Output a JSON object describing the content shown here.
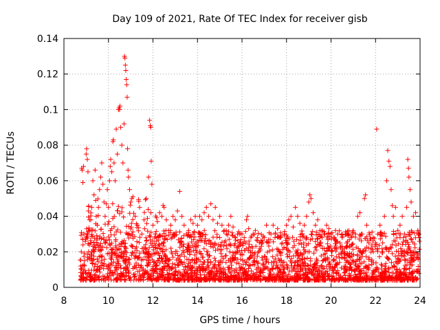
{
  "chart_data": {
    "type": "scatter",
    "title": "Day 109 of 2021, Rate Of TEC Index for receiver gisb",
    "xlabel": "GPS time / hours",
    "ylabel": "ROTI / TECUs",
    "xlim": [
      8,
      24
    ],
    "ylim": [
      0,
      0.14
    ],
    "x_ticks": [
      8,
      10,
      12,
      14,
      16,
      18,
      20,
      22,
      24
    ],
    "y_ticks": [
      0,
      0.02,
      0.04,
      0.06,
      0.08,
      0.1,
      0.12,
      0.14
    ],
    "x_tick_labels": [
      "8",
      "10",
      "12",
      "14",
      "16",
      "18",
      "20",
      "22",
      "24"
    ],
    "y_tick_labels": [
      "0",
      "0.02",
      "0.04",
      "0.06",
      "0.08",
      "0.1",
      "0.12",
      "0.14"
    ],
    "grid": true,
    "marker": "+",
    "color": "#ff0000",
    "series": [
      {
        "name": "gisb",
        "points": [
          [
            8.75,
            0.012
          ],
          [
            8.78,
            0.02
          ],
          [
            8.8,
            0.067
          ],
          [
            8.82,
            0.066
          ],
          [
            8.85,
            0.059
          ],
          [
            8.88,
            0.068
          ],
          [
            8.9,
            0.03
          ],
          [
            8.92,
            0.015
          ],
          [
            9.0,
            0.075
          ],
          [
            9.02,
            0.078
          ],
          [
            9.05,
            0.072
          ],
          [
            9.08,
            0.065
          ],
          [
            9.1,
            0.043
          ],
          [
            9.15,
            0.038
          ],
          [
            9.2,
            0.025
          ],
          [
            9.25,
            0.045
          ],
          [
            9.3,
            0.06
          ],
          [
            9.35,
            0.052
          ],
          [
            9.4,
            0.066
          ],
          [
            9.45,
            0.04
          ],
          [
            9.5,
            0.035
          ],
          [
            9.55,
            0.045
          ],
          [
            9.6,
            0.055
          ],
          [
            9.65,
            0.062
          ],
          [
            9.7,
            0.07
          ],
          [
            9.75,
            0.058
          ],
          [
            9.8,
            0.048
          ],
          [
            9.85,
            0.04
          ],
          [
            9.9,
            0.047
          ],
          [
            9.95,
            0.055
          ],
          [
            10.0,
            0.045
          ],
          [
            10.02,
            0.037
          ],
          [
            10.05,
            0.06
          ],
          [
            10.08,
            0.068
          ],
          [
            10.1,
            0.072
          ],
          [
            10.15,
            0.065
          ],
          [
            10.2,
            0.082
          ],
          [
            10.22,
            0.083
          ],
          [
            10.25,
            0.07
          ],
          [
            10.3,
            0.06
          ],
          [
            10.35,
            0.089
          ],
          [
            10.4,
            0.075
          ],
          [
            10.45,
            0.1
          ],
          [
            10.48,
            0.101
          ],
          [
            10.5,
            0.1
          ],
          [
            10.52,
            0.102
          ],
          [
            10.55,
            0.09
          ],
          [
            10.6,
            0.08
          ],
          [
            10.65,
            0.07
          ],
          [
            10.7,
            0.092
          ],
          [
            10.72,
            0.13
          ],
          [
            10.74,
            0.129
          ],
          [
            10.76,
            0.125
          ],
          [
            10.78,
            0.122
          ],
          [
            10.8,
            0.117
          ],
          [
            10.82,
            0.114
          ],
          [
            10.84,
            0.107
          ],
          [
            10.86,
            0.078
          ],
          [
            10.88,
            0.066
          ],
          [
            10.9,
            0.062
          ],
          [
            10.95,
            0.055
          ],
          [
            11.0,
            0.048
          ],
          [
            11.05,
            0.05
          ],
          [
            11.1,
            0.051
          ],
          [
            11.2,
            0.04
          ],
          [
            11.3,
            0.035
          ],
          [
            11.4,
            0.045
          ],
          [
            11.5,
            0.03
          ],
          [
            11.6,
            0.038
          ],
          [
            11.7,
            0.05
          ],
          [
            11.8,
            0.062
          ],
          [
            11.85,
            0.094
          ],
          [
            11.88,
            0.091
          ],
          [
            11.9,
            0.09
          ],
          [
            11.92,
            0.071
          ],
          [
            11.95,
            0.058
          ],
          [
            12.0,
            0.035
          ],
          [
            12.1,
            0.03
          ],
          [
            12.2,
            0.037
          ],
          [
            12.3,
            0.042
          ],
          [
            12.4,
            0.04
          ],
          [
            12.5,
            0.045
          ],
          [
            12.6,
            0.038
          ],
          [
            12.7,
            0.032
          ],
          [
            12.8,
            0.035
          ],
          [
            12.9,
            0.04
          ],
          [
            13.0,
            0.038
          ],
          [
            13.1,
            0.043
          ],
          [
            13.2,
            0.054
          ],
          [
            13.3,
            0.04
          ],
          [
            13.4,
            0.035
          ],
          [
            13.5,
            0.03
          ],
          [
            13.6,
            0.032
          ],
          [
            13.7,
            0.038
          ],
          [
            13.8,
            0.036
          ],
          [
            13.9,
            0.04
          ],
          [
            14.0,
            0.035
          ],
          [
            14.1,
            0.04
          ],
          [
            14.2,
            0.038
          ],
          [
            14.3,
            0.042
          ],
          [
            14.4,
            0.045
          ],
          [
            14.5,
            0.04
          ],
          [
            14.6,
            0.047
          ],
          [
            14.7,
            0.038
          ],
          [
            14.8,
            0.045
          ],
          [
            14.9,
            0.036
          ],
          [
            15.0,
            0.04
          ],
          [
            15.1,
            0.035
          ],
          [
            15.2,
            0.032
          ],
          [
            15.3,
            0.03
          ],
          [
            15.4,
            0.035
          ],
          [
            15.5,
            0.04
          ],
          [
            15.6,
            0.034
          ],
          [
            15.7,
            0.028
          ],
          [
            15.8,
            0.03
          ],
          [
            15.9,
            0.025
          ],
          [
            16.0,
            0.03
          ],
          [
            16.1,
            0.028
          ],
          [
            16.2,
            0.038
          ],
          [
            16.25,
            0.04
          ],
          [
            16.3,
            0.033
          ],
          [
            16.4,
            0.028
          ],
          [
            16.5,
            0.03
          ],
          [
            16.6,
            0.032
          ],
          [
            16.7,
            0.028
          ],
          [
            16.8,
            0.022
          ],
          [
            16.9,
            0.025
          ],
          [
            17.0,
            0.028
          ],
          [
            17.1,
            0.035
          ],
          [
            17.2,
            0.025
          ],
          [
            17.3,
            0.03
          ],
          [
            17.4,
            0.035
          ],
          [
            17.5,
            0.03
          ],
          [
            17.6,
            0.033
          ],
          [
            17.7,
            0.028
          ],
          [
            17.8,
            0.025
          ],
          [
            17.9,
            0.03
          ],
          [
            18.0,
            0.035
          ],
          [
            18.1,
            0.038
          ],
          [
            18.2,
            0.04
          ],
          [
            18.3,
            0.034
          ],
          [
            18.4,
            0.045
          ],
          [
            18.5,
            0.04
          ],
          [
            18.6,
            0.036
          ],
          [
            18.7,
            0.03
          ],
          [
            18.8,
            0.035
          ],
          [
            18.9,
            0.04
          ],
          [
            19.0,
            0.048
          ],
          [
            19.05,
            0.052
          ],
          [
            19.1,
            0.05
          ],
          [
            19.2,
            0.042
          ],
          [
            19.3,
            0.035
          ],
          [
            19.4,
            0.038
          ],
          [
            19.5,
            0.032
          ],
          [
            19.6,
            0.028
          ],
          [
            19.7,
            0.03
          ],
          [
            19.8,
            0.035
          ],
          [
            19.9,
            0.033
          ],
          [
            20.0,
            0.03
          ],
          [
            20.1,
            0.028
          ],
          [
            20.2,
            0.032
          ],
          [
            20.3,
            0.03
          ],
          [
            20.4,
            0.025
          ],
          [
            20.5,
            0.028
          ],
          [
            20.6,
            0.022
          ],
          [
            20.7,
            0.025
          ],
          [
            20.8,
            0.03
          ],
          [
            20.9,
            0.028
          ],
          [
            21.0,
            0.032
          ],
          [
            21.1,
            0.03
          ],
          [
            21.2,
            0.04
          ],
          [
            21.3,
            0.042
          ],
          [
            21.4,
            0.03
          ],
          [
            21.5,
            0.05
          ],
          [
            21.55,
            0.052
          ],
          [
            21.6,
            0.035
          ],
          [
            21.7,
            0.025
          ],
          [
            21.8,
            0.022
          ],
          [
            21.9,
            0.02
          ],
          [
            22.0,
            0.025
          ],
          [
            22.05,
            0.089
          ],
          [
            22.1,
            0.03
          ],
          [
            22.2,
            0.035
          ],
          [
            22.3,
            0.03
          ],
          [
            22.4,
            0.04
          ],
          [
            22.5,
            0.06
          ],
          [
            22.55,
            0.077
          ],
          [
            22.6,
            0.071
          ],
          [
            22.65,
            0.068
          ],
          [
            22.7,
            0.055
          ],
          [
            22.75,
            0.046
          ],
          [
            22.8,
            0.04
          ],
          [
            22.9,
            0.045
          ],
          [
            23.0,
            0.032
          ],
          [
            23.1,
            0.035
          ],
          [
            23.2,
            0.04
          ],
          [
            23.3,
            0.03
          ],
          [
            23.4,
            0.045
          ],
          [
            23.45,
            0.072
          ],
          [
            23.48,
            0.067
          ],
          [
            23.5,
            0.062
          ],
          [
            23.55,
            0.055
          ],
          [
            23.6,
            0.048
          ],
          [
            23.7,
            0.04
          ],
          [
            23.8,
            0.042
          ],
          [
            23.9,
            0.032
          ],
          [
            23.95,
            0.03
          ]
        ]
      }
    ]
  }
}
